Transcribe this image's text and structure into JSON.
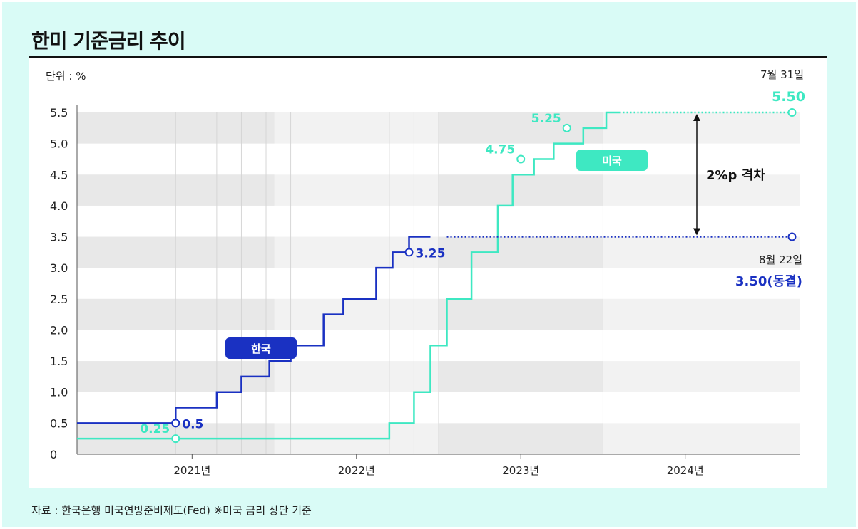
{
  "title": "한미 기준금리 추이",
  "unit_label": "단위 : %",
  "source": "자료 : 한국은행 미국연방준비제도(Fed) ※미국 금리 상단 기준",
  "colors": {
    "us": "#3ee8c2",
    "korea": "#1a31c2",
    "band_dark": "#e8e8e8",
    "band_mid": "#f2f2f2"
  },
  "chart_data": {
    "type": "line",
    "step": true,
    "ylim": [
      0,
      5.5
    ],
    "y_ticks": [
      "0",
      "0.5",
      "1.0",
      "1.5",
      "2.0",
      "2.5",
      "3.0",
      "3.5",
      "4.0",
      "4.5",
      "5.0",
      "5.5"
    ],
    "x_range": [
      2020.3,
      2024.7
    ],
    "x_ticks": [
      {
        "x": 2021.0,
        "label": "2021년"
      },
      {
        "x": 2022.0,
        "label": "2022년"
      },
      {
        "x": 2023.0,
        "label": "2023년"
      },
      {
        "x": 2024.0,
        "label": "2024년"
      }
    ],
    "series": [
      {
        "name": "미국",
        "color_key": "us",
        "points": [
          [
            2020.3,
            0.25
          ],
          [
            2022.2,
            0.25
          ],
          [
            2022.2,
            0.5
          ],
          [
            2022.35,
            0.5
          ],
          [
            2022.35,
            1.0
          ],
          [
            2022.45,
            1.0
          ],
          [
            2022.45,
            1.75
          ],
          [
            2022.55,
            1.75
          ],
          [
            2022.55,
            2.5
          ],
          [
            2022.7,
            2.5
          ],
          [
            2022.7,
            3.25
          ],
          [
            2022.86,
            3.25
          ],
          [
            2022.86,
            4.0
          ],
          [
            2022.95,
            4.0
          ],
          [
            2022.95,
            4.5
          ],
          [
            2023.08,
            4.5
          ],
          [
            2023.08,
            4.75
          ],
          [
            2023.2,
            4.75
          ],
          [
            2023.2,
            5.0
          ],
          [
            2023.38,
            5.0
          ],
          [
            2023.38,
            5.25
          ],
          [
            2023.52,
            5.25
          ],
          [
            2023.52,
            5.5
          ],
          [
            2023.6,
            5.5
          ]
        ],
        "projection": [
          [
            2023.6,
            5.5
          ],
          [
            2024.65,
            5.5
          ]
        ],
        "markers": [
          {
            "x": 2020.9,
            "y": 0.25,
            "label": "0.25"
          },
          {
            "x": 2023.0,
            "y": 4.75,
            "label": "4.75"
          },
          {
            "x": 2023.28,
            "y": 5.25,
            "label": "5.25"
          }
        ],
        "end": {
          "x": 2024.65,
          "y": 5.5,
          "date": "7월 31일",
          "value": "5.50"
        }
      },
      {
        "name": "한국",
        "color_key": "korea",
        "points": [
          [
            2020.3,
            0.5
          ],
          [
            2020.9,
            0.5
          ],
          [
            2020.9,
            0.75
          ],
          [
            2021.15,
            0.75
          ],
          [
            2021.15,
            1.0
          ],
          [
            2021.3,
            1.0
          ],
          [
            2021.3,
            1.25
          ],
          [
            2021.47,
            1.25
          ],
          [
            2021.47,
            1.5
          ],
          [
            2021.6,
            1.5
          ],
          [
            2021.6,
            1.75
          ],
          [
            2021.8,
            1.75
          ],
          [
            2021.8,
            2.25
          ],
          [
            2021.92,
            2.25
          ],
          [
            2021.92,
            2.5
          ],
          [
            2022.12,
            2.5
          ],
          [
            2022.12,
            3.0
          ],
          [
            2022.22,
            3.0
          ],
          [
            2022.22,
            3.25
          ],
          [
            2022.32,
            3.25
          ],
          [
            2022.32,
            3.5
          ],
          [
            2022.45,
            3.5
          ]
        ],
        "projection": [
          [
            2022.55,
            3.5
          ],
          [
            2024.65,
            3.5
          ]
        ],
        "markers": [
          {
            "x": 2020.9,
            "y": 0.5,
            "label": "0.5"
          },
          {
            "x": 2022.32,
            "y": 3.25,
            "label": "3.25"
          }
        ],
        "end": {
          "x": 2024.65,
          "y": 3.5,
          "date": "8월 22일",
          "value": "3.50(동결)"
        }
      }
    ],
    "gap_annotation": "2%p 격차",
    "tags": [
      "미국",
      "한국"
    ]
  }
}
